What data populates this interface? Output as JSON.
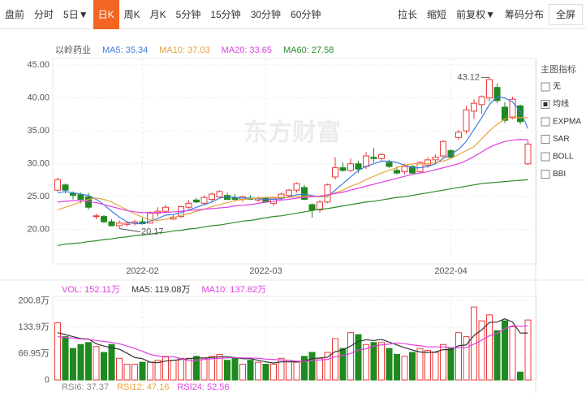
{
  "toolbar": {
    "tabs": [
      "盘前",
      "分时",
      "5日▼",
      "日K",
      "周K",
      "月K",
      "5分钟",
      "15分钟",
      "30分钟",
      "60分钟"
    ],
    "active_tab": "日K",
    "tools": [
      "拉长",
      "缩短",
      "前复权▼",
      "筹码分布"
    ],
    "fullscreen": "全屏"
  },
  "watermark": "东方财富",
  "chart_data": [
    {
      "type": "candlestick",
      "title": "以岭药业",
      "up_color": "#e83a3a",
      "down_color": "#1f8a1f",
      "grid": true,
      "categories": [
        null,
        null,
        null,
        null,
        null,
        null,
        null,
        null,
        null,
        null,
        null,
        "2022-02",
        null,
        null,
        null,
        null,
        null,
        null,
        null,
        null,
        null,
        null,
        null,
        null,
        null,
        null,
        null,
        "2022-03",
        null,
        null,
        null,
        null,
        null,
        null,
        null,
        null,
        null,
        null,
        null,
        null,
        null,
        null,
        null,
        null,
        null,
        null,
        null,
        null,
        null,
        null,
        null,
        "2022-04",
        null,
        null,
        null,
        null,
        null,
        null,
        null,
        null,
        null,
        null
      ],
      "open": [
        26.0,
        26.8,
        25.5,
        25.3,
        25.0,
        22.0,
        22.0,
        21.2,
        20.6,
        20.8,
        21.0,
        21.2,
        21.0,
        22.5,
        22.8,
        21.6,
        22.0,
        23.4,
        24.5,
        24.0,
        24.6,
        25.0,
        25.2,
        24.8,
        24.6,
        24.8,
        24.5,
        24.8,
        24.0,
        24.8,
        25.2,
        26.0,
        26.4,
        23.8,
        23.0,
        24.2,
        28.0,
        29.4,
        29.0,
        30.0,
        29.6,
        31.0,
        30.8,
        30.2,
        29.0,
        28.8,
        29.6,
        28.8,
        29.8,
        30.6,
        31.2,
        32.0,
        34.0,
        35.0,
        38.0,
        39.0,
        40.0,
        41.6,
        38.6,
        37.0,
        38.8,
        30.0
      ],
      "high": [
        27.9,
        27.0,
        25.8,
        25.6,
        25.6,
        22.4,
        22.2,
        21.6,
        21.4,
        21.3,
        21.5,
        21.8,
        22.8,
        23.4,
        23.8,
        22.2,
        23.6,
        24.5,
        24.8,
        25.2,
        25.6,
        26.0,
        25.6,
        25.4,
        25.2,
        25.2,
        25.0,
        25.0,
        25.0,
        25.6,
        26.2,
        27.2,
        26.8,
        24.0,
        24.5,
        27.0,
        31.0,
        30.2,
        30.8,
        30.5,
        31.8,
        32.4,
        31.6,
        30.6,
        29.6,
        30.0,
        29.8,
        30.4,
        31.0,
        31.4,
        33.6,
        32.2,
        35.2,
        38.8,
        39.8,
        40.4,
        43.12,
        42.2,
        39.4,
        40.2,
        39.0,
        33.6
      ],
      "low": [
        25.8,
        25.5,
        24.6,
        24.0,
        23.0,
        21.6,
        21.0,
        20.5,
        20.17,
        20.5,
        20.6,
        20.8,
        20.9,
        22.0,
        22.5,
        21.5,
        21.8,
        23.2,
        24.0,
        23.8,
        24.2,
        24.8,
        24.5,
        24.3,
        24.2,
        24.5,
        24.2,
        24.0,
        23.6,
        24.5,
        25.0,
        25.6,
        24.5,
        21.8,
        22.6,
        24.0,
        27.6,
        28.8,
        28.8,
        28.6,
        29.2,
        30.2,
        30.4,
        29.4,
        28.4,
        28.4,
        28.4,
        28.6,
        29.4,
        30.0,
        30.8,
        30.8,
        33.6,
        34.6,
        36.8,
        37.6,
        39.4,
        39.2,
        36.2,
        36.8,
        36.0,
        29.8
      ],
      "close": [
        27.6,
        26.0,
        25.2,
        24.6,
        23.4,
        22.1,
        21.2,
        20.6,
        21.0,
        21.0,
        21.2,
        20.9,
        22.5,
        22.8,
        23.4,
        21.9,
        23.5,
        24.0,
        24.2,
        24.9,
        25.4,
        25.8,
        24.6,
        24.6,
        25.0,
        24.6,
        24.8,
        24.2,
        24.8,
        25.4,
        26.0,
        27.0,
        24.6,
        23.0,
        24.2,
        26.8,
        29.4,
        29.0,
        30.0,
        29.2,
        31.2,
        30.8,
        31.4,
        29.6,
        28.6,
        29.6,
        28.6,
        30.2,
        30.6,
        31.0,
        33.4,
        31.0,
        34.8,
        38.2,
        39.2,
        40.2,
        42.8,
        39.6,
        36.6,
        39.8,
        36.4,
        33.0
      ],
      "low_marker": 20.17,
      "high_marker": 43.12,
      "ylim": [
        14.8,
        46
      ],
      "yticks": [
        {
          "value": 20,
          "label": "20.00"
        },
        {
          "value": 25,
          "label": "25.00"
        },
        {
          "value": 30,
          "label": "30.00"
        },
        {
          "value": 35,
          "label": "35.00"
        },
        {
          "value": 40,
          "label": "40.00"
        },
        {
          "value": 45,
          "label": "45.00"
        }
      ],
      "series": [
        {
          "name": "MA5: 35.34",
          "color": "#3d7be0",
          "values": [
            25.6,
            25.8,
            25.6,
            25.4,
            25.2,
            24.6,
            23.8,
            22.8,
            21.9,
            21.2,
            20.9,
            20.9,
            21.3,
            21.7,
            22.2,
            22.3,
            22.6,
            23.0,
            23.4,
            23.8,
            24.2,
            24.8,
            25.0,
            24.9,
            24.8,
            24.8,
            24.7,
            24.6,
            24.6,
            24.7,
            25.0,
            25.3,
            25.4,
            25.2,
            25.0,
            25.0,
            26.0,
            27.0,
            28.0,
            29.0,
            29.6,
            30.0,
            30.4,
            30.4,
            30.2,
            29.8,
            29.4,
            29.4,
            29.6,
            30.0,
            30.8,
            31.4,
            32.2,
            33.4,
            35.2,
            37.0,
            39.0,
            40.2,
            40.0,
            39.4,
            38.0,
            35.34
          ]
        },
        {
          "name": "MA10: 37.03",
          "color": "#e8a33c",
          "values": [
            23.0,
            23.4,
            23.8,
            24.2,
            24.6,
            24.8,
            24.6,
            24.2,
            23.6,
            23.0,
            22.4,
            21.9,
            21.5,
            21.4,
            21.6,
            21.8,
            22.2,
            22.4,
            22.8,
            23.1,
            23.5,
            23.8,
            24.1,
            24.4,
            24.6,
            24.7,
            24.8,
            24.9,
            24.9,
            24.9,
            24.9,
            25.0,
            25.1,
            25.1,
            25.0,
            25.1,
            25.6,
            26.0,
            26.6,
            27.0,
            27.6,
            28.1,
            28.6,
            29.0,
            29.4,
            29.8,
            30.0,
            30.0,
            30.0,
            30.2,
            30.4,
            30.8,
            31.4,
            32.0,
            32.6,
            33.8,
            35.0,
            36.0,
            36.8,
            37.2,
            37.0,
            37.03
          ]
        },
        {
          "name": "MA20: 33.65",
          "color": "#e040e0",
          "values": [
            24.2,
            24.3,
            24.4,
            24.4,
            24.3,
            24.1,
            23.8,
            23.5,
            23.2,
            22.9,
            22.7,
            22.6,
            22.6,
            22.6,
            22.6,
            22.7,
            22.8,
            22.9,
            23.0,
            23.1,
            23.2,
            23.3,
            23.4,
            23.6,
            23.7,
            23.8,
            24.0,
            24.2,
            24.3,
            24.5,
            24.6,
            24.8,
            24.9,
            25.0,
            25.1,
            25.3,
            25.5,
            25.7,
            26.0,
            26.3,
            26.6,
            26.9,
            27.2,
            27.5,
            27.8,
            28.1,
            28.4,
            28.6,
            28.8,
            29.1,
            29.4,
            29.7,
            30.0,
            30.5,
            31.1,
            31.8,
            32.5,
            33.0,
            33.4,
            33.6,
            33.7,
            33.65
          ]
        },
        {
          "name": "MA60: 27.58",
          "color": "#2a8a2a",
          "values": [
            17.6,
            17.8,
            17.9,
            18.0,
            18.2,
            18.3,
            18.5,
            18.6,
            18.8,
            18.9,
            19.1,
            19.2,
            19.3,
            19.5,
            19.6,
            19.8,
            19.9,
            20.1,
            20.2,
            20.4,
            20.6,
            20.7,
            20.9,
            21.1,
            21.3,
            21.4,
            21.6,
            21.8,
            22.0,
            22.1,
            22.3,
            22.5,
            22.7,
            22.9,
            23.1,
            23.2,
            23.4,
            23.6,
            23.8,
            24.0,
            24.2,
            24.3,
            24.5,
            24.7,
            24.9,
            25.0,
            25.2,
            25.4,
            25.6,
            25.8,
            26.0,
            26.2,
            26.4,
            26.6,
            26.8,
            27.0,
            27.1,
            27.2,
            27.3,
            27.4,
            27.5,
            27.58
          ]
        }
      ]
    },
    {
      "type": "bar",
      "legend": [
        {
          "text": "VOL: 152.11万",
          "color": "#e040e0"
        },
        {
          "text": "MA5: 119.08万",
          "color": "#333333"
        },
        {
          "text": "MA10: 137.82万",
          "color": "#e040e0"
        }
      ],
      "values": [
        145,
        110,
        80,
        90,
        95,
        85,
        70,
        90,
        55,
        40,
        40,
        45,
        45,
        50,
        60,
        50,
        55,
        55,
        60,
        55,
        60,
        65,
        50,
        55,
        40,
        50,
        45,
        40,
        40,
        55,
        50,
        45,
        60,
        70,
        55,
        70,
        105,
        80,
        120,
        115,
        90,
        95,
        95,
        80,
        65,
        60,
        70,
        80,
        75,
        70,
        90,
        80,
        120,
        110,
        185,
        150,
        165,
        125,
        150,
        135,
        20,
        152.11
      ],
      "ylim": [
        0,
        212
      ],
      "yticks": [
        0,
        {
          "value": 66.95,
          "label": "66.95万"
        },
        {
          "value": 133.9,
          "label": "133.9万"
        },
        {
          "value": 200.8,
          "label": "200.8万"
        }
      ],
      "series": [
        {
          "name": "MA5",
          "color": "#333333",
          "values": [
            120,
            115,
            110,
            105,
            104,
            92,
            86,
            82,
            78,
            68,
            57,
            54,
            45,
            44,
            48,
            50,
            52,
            54,
            56,
            56,
            57,
            59,
            59,
            57,
            54,
            54,
            50,
            46,
            43,
            46,
            46,
            46,
            48,
            54,
            56,
            58,
            72,
            76,
            86,
            98,
            102,
            100,
            103,
            96,
            89,
            82,
            76,
            71,
            70,
            71,
            77,
            77,
            87,
            89,
            113,
            127,
            146,
            147,
            155,
            147,
            119,
            119.08
          ]
        },
        {
          "name": "MA10",
          "color": "#e040e0",
          "values": [
            110,
            108,
            106,
            104,
            103,
            100,
            98,
            95,
            92,
            86,
            80,
            73,
            65,
            61,
            58,
            59,
            54,
            49,
            50,
            52,
            54,
            55,
            56,
            57,
            56,
            56,
            55,
            53,
            52,
            51,
            50,
            48,
            47,
            50,
            51,
            52,
            59,
            62,
            67,
            76,
            79,
            86,
            89,
            91,
            94,
            92,
            89,
            87,
            84,
            84,
            84,
            82,
            82,
            82,
            91,
            101,
            112,
            118,
            130,
            138,
            136,
            137.82
          ]
        }
      ]
    }
  ],
  "indicator_panel": {
    "title": "主图指标",
    "options": [
      "无",
      "均线",
      "EXPMA",
      "SAR",
      "BOLL",
      "BBI"
    ],
    "selected": "均线"
  },
  "rsi": [
    {
      "text": "RSI6: 37.37",
      "color": "#888888"
    },
    {
      "text": "RSI12: 47.16",
      "color": "#e8a33c"
    },
    {
      "text": "RSI24: 52.56",
      "color": "#e040e0"
    }
  ]
}
